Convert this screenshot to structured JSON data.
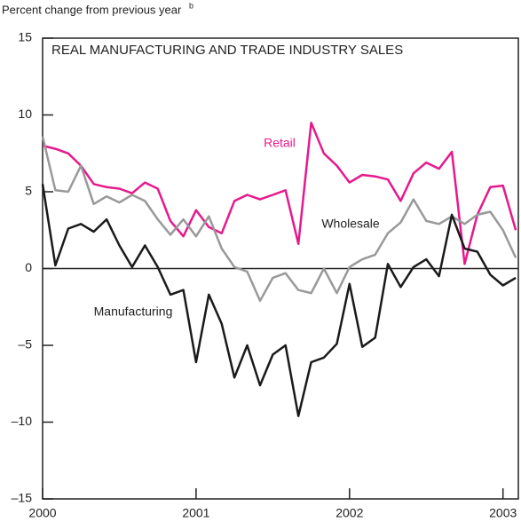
{
  "chart_data": {
    "type": "line",
    "title": "REAL MANUFACTURING AND TRADE INDUSTRY SALES",
    "y_label": "Percent change from previous year",
    "y_label_footnote": "b",
    "x": [
      2000,
      2000.083,
      2000.167,
      2000.25,
      2000.333,
      2000.417,
      2000.5,
      2000.583,
      2000.667,
      2000.75,
      2000.833,
      2000.917,
      2001,
      2001.083,
      2001.167,
      2001.25,
      2001.333,
      2001.417,
      2001.5,
      2001.583,
      2001.667,
      2001.75,
      2001.833,
      2001.917,
      2002,
      2002.083,
      2002.167,
      2002.25,
      2002.333,
      2002.417,
      2002.5,
      2002.583,
      2002.667,
      2002.75,
      2002.833,
      2002.917,
      2003,
      2003.083
    ],
    "series": [
      {
        "name": "Retail",
        "color": "#e6198c",
        "values": [
          8.0,
          7.8,
          7.5,
          6.7,
          5.5,
          5.3,
          5.2,
          4.9,
          5.6,
          5.2,
          3.1,
          2.1,
          3.8,
          2.7,
          2.3,
          4.4,
          4.8,
          4.5,
          4.8,
          5.1,
          1.6,
          9.5,
          7.5,
          6.7,
          5.6,
          6.1,
          6.0,
          5.8,
          4.4,
          6.2,
          6.9,
          6.5,
          7.6,
          0.3,
          3.5,
          5.3,
          5.4,
          2.5
        ]
      },
      {
        "name": "Wholesale",
        "color": "#999999",
        "values": [
          8.6,
          5.1,
          5.0,
          6.7,
          4.2,
          4.7,
          4.3,
          4.8,
          4.4,
          3.2,
          2.2,
          3.2,
          2.1,
          3.4,
          1.3,
          0.1,
          -0.2,
          -2.1,
          -0.6,
          -0.3,
          -1.4,
          -1.6,
          0.0,
          -1.6,
          0.1,
          0.6,
          0.9,
          2.3,
          3.0,
          4.5,
          3.1,
          2.9,
          3.4,
          2.9,
          3.5,
          3.7,
          2.5,
          0.7
        ]
      },
      {
        "name": "Manufacturing",
        "color": "#1a1a1a",
        "values": [
          5.5,
          0.2,
          2.6,
          2.9,
          2.4,
          3.2,
          1.5,
          0.1,
          1.5,
          0.1,
          -1.7,
          -1.4,
          -6.1,
          -1.7,
          -3.6,
          -7.1,
          -5.0,
          -7.6,
          -5.6,
          -5.0,
          -9.6,
          -6.1,
          -5.8,
          -4.9,
          -1.0,
          -5.1,
          -4.5,
          0.3,
          -1.2,
          0.1,
          0.6,
          -0.5,
          3.5,
          1.3,
          1.1,
          -0.4,
          -1.1,
          -0.6
        ]
      }
    ],
    "xlim": [
      2000,
      2003.1
    ],
    "xticks": [
      2000,
      2001,
      2002,
      2003
    ],
    "ylim": [
      -15,
      15
    ],
    "yticks": [
      {
        "value": -15,
        "label": "–15"
      },
      {
        "value": -10,
        "label": "–10"
      },
      {
        "value": -5,
        "label": "–5"
      },
      0,
      5,
      10,
      15
    ]
  }
}
